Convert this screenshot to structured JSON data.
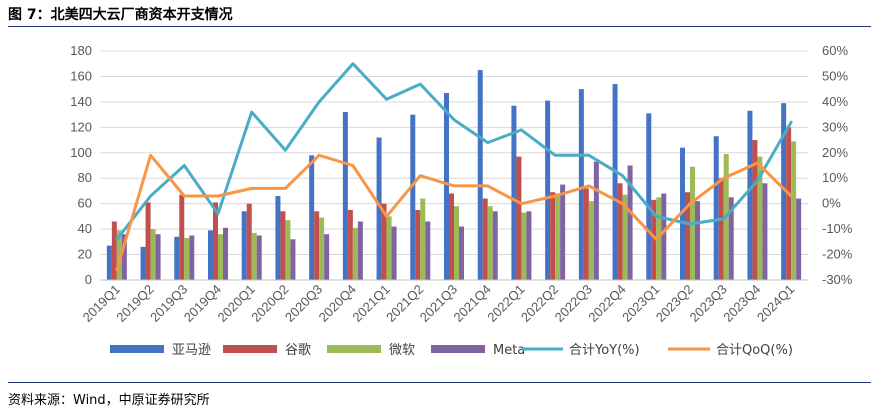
{
  "figure": {
    "title": "图 7：北美四大云厂商资本开支情况",
    "source": "资料来源：Wind，中原证券研究所"
  },
  "chart_data": {
    "type": "bar",
    "title": "",
    "categories": [
      "2019Q1",
      "2019Q2",
      "2019Q3",
      "2019Q4",
      "2020Q1",
      "2020Q2",
      "2020Q3",
      "2020Q4",
      "2021Q1",
      "2021Q2",
      "2021Q3",
      "2021Q4",
      "2022Q1",
      "2022Q2",
      "2022Q3",
      "2022Q4",
      "2023Q1",
      "2023Q2",
      "2023Q3",
      "2023Q4",
      "2024Q1"
    ],
    "y_left": {
      "ylim": [
        0,
        180
      ],
      "ticks": [
        "0",
        "20",
        "40",
        "60",
        "80",
        "100",
        "120",
        "140",
        "160",
        "180"
      ]
    },
    "y_right": {
      "ylim": [
        -30,
        60
      ],
      "ticks": [
        "-30%",
        "-20%",
        "-10%",
        "0%",
        "10%",
        "20%",
        "30%",
        "40%",
        "50%",
        "60%"
      ]
    },
    "series": [
      {
        "name": "亚马逊",
        "kind": "bar",
        "axis": "left",
        "color": "#4472c4",
        "values": [
          27,
          26,
          34,
          39,
          54,
          66,
          98,
          132,
          112,
          130,
          147,
          165,
          137,
          141,
          150,
          154,
          131,
          104,
          113,
          133,
          139
        ]
      },
      {
        "name": "谷歌",
        "kind": "bar",
        "axis": "left",
        "color": "#c0504d",
        "values": [
          46,
          61,
          67,
          61,
          60,
          54,
          54,
          55,
          60,
          55,
          68,
          64,
          97,
          69,
          72,
          76,
          63,
          69,
          80,
          110,
          120
        ]
      },
      {
        "name": "微软",
        "kind": "bar",
        "axis": "left",
        "color": "#9bbb59",
        "values": [
          39,
          40,
          33,
          36,
          37,
          47,
          49,
          41,
          50,
          64,
          58,
          58,
          53,
          68,
          62,
          67,
          65,
          89,
          99,
          97,
          109
        ]
      },
      {
        "name": "Meta",
        "kind": "bar",
        "axis": "left",
        "color": "#8064a2",
        "values": [
          36,
          36,
          35,
          41,
          35,
          32,
          36,
          46,
          42,
          46,
          42,
          54,
          54,
          75,
          93,
          90,
          68,
          62,
          65,
          76,
          64
        ]
      },
      {
        "name": "合计YoY(%)",
        "kind": "line",
        "axis": "right",
        "color": "#4bacc6",
        "values": [
          -14,
          3,
          15,
          -4,
          36,
          21,
          40,
          55,
          41,
          47,
          33,
          24,
          29,
          19,
          19,
          11,
          -5,
          -8,
          -6,
          9,
          32
        ]
      },
      {
        "name": "合计QoQ(%)",
        "kind": "line",
        "axis": "right",
        "color": "#f79646",
        "values": [
          -26,
          19,
          3,
          3,
          6,
          6,
          19,
          15,
          -5,
          11,
          7,
          7,
          0,
          3,
          7,
          0,
          -14,
          0,
          10,
          16,
          3
        ]
      }
    ],
    "grid": true,
    "legend": "bottom"
  }
}
